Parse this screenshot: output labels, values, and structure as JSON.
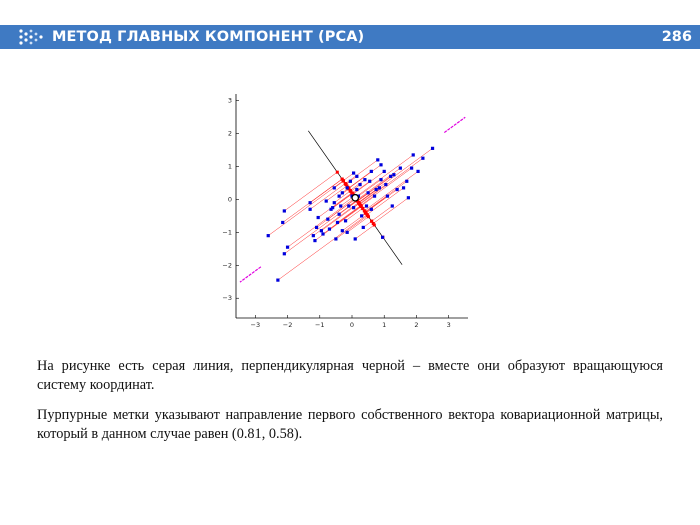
{
  "header": {
    "title": "МЕТОД ГЛАВНЫХ КОМПОНЕНТ (PCA)",
    "page_number": "286",
    "colors": {
      "bar": "#3f7ac3",
      "text": "#ffffff"
    }
  },
  "figure": {
    "x_ticks": [
      "−3",
      "−2",
      "−1",
      "0",
      "1",
      "2",
      "3"
    ],
    "y_ticks": [
      "3",
      "2",
      "1",
      "0",
      "−1",
      "−2",
      "−3"
    ]
  },
  "chart_data": {
    "type": "scatter",
    "title": "",
    "xlabel": "",
    "ylabel": "",
    "xlim": [
      -3.6,
      3.6
    ],
    "ylim": [
      -3.6,
      3.2
    ],
    "grid": false,
    "eigenvector": [
      0.81,
      0.58
    ],
    "center": [
      0.1,
      0.05
    ],
    "colors": {
      "points": "#0000dd",
      "projections": "#ff0000",
      "magenta": "#e000e0",
      "black_axis": "#000000",
      "gray_axis": "#999999"
    },
    "points": [
      [
        -2.6,
        -1.1
      ],
      [
        -2.3,
        -2.45
      ],
      [
        -2.1,
        -1.65
      ],
      [
        -2.0,
        -1.45
      ],
      [
        -2.1,
        -0.35
      ],
      [
        -2.15,
        -0.7
      ],
      [
        -1.3,
        -0.1
      ],
      [
        -1.3,
        -0.3
      ],
      [
        -1.1,
        -0.85
      ],
      [
        -1.05,
        -0.55
      ],
      [
        -0.95,
        -0.95
      ],
      [
        -0.9,
        -1.05
      ],
      [
        -1.2,
        -1.1
      ],
      [
        -1.15,
        -1.25
      ],
      [
        -0.75,
        -0.6
      ],
      [
        -0.7,
        -0.9
      ],
      [
        -0.65,
        -0.3
      ],
      [
        -0.6,
        -0.25
      ],
      [
        -0.55,
        -0.1
      ],
      [
        -0.5,
        -1.2
      ],
      [
        -0.45,
        -0.7
      ],
      [
        -0.4,
        0.1
      ],
      [
        -0.4,
        -0.45
      ],
      [
        -0.35,
        -0.2
      ],
      [
        -0.3,
        0.2
      ],
      [
        -0.3,
        -0.95
      ],
      [
        -0.2,
        -0.65
      ],
      [
        -0.15,
        -1.0
      ],
      [
        -0.15,
        0.35
      ],
      [
        -0.1,
        -0.2
      ],
      [
        -0.05,
        0.55
      ],
      [
        0.0,
        0.1
      ],
      [
        0.05,
        -0.25
      ],
      [
        0.05,
        0.8
      ],
      [
        0.1,
        -1.2
      ],
      [
        0.15,
        0.7
      ],
      [
        0.15,
        0.3
      ],
      [
        0.2,
        0.1
      ],
      [
        0.25,
        0.45
      ],
      [
        0.3,
        -0.5
      ],
      [
        0.35,
        -0.85
      ],
      [
        0.4,
        0.6
      ],
      [
        0.45,
        -0.2
      ],
      [
        0.5,
        0.2
      ],
      [
        0.55,
        0.55
      ],
      [
        0.6,
        -0.3
      ],
      [
        0.7,
        0.1
      ],
      [
        0.75,
        0.3
      ],
      [
        0.8,
        1.2
      ],
      [
        0.85,
        0.35
      ],
      [
        0.9,
        0.6
      ],
      [
        0.95,
        -1.15
      ],
      [
        1.0,
        0.85
      ],
      [
        1.05,
        0.45
      ],
      [
        1.1,
        0.1
      ],
      [
        1.2,
        0.7
      ],
      [
        1.25,
        -0.2
      ],
      [
        1.3,
        0.75
      ],
      [
        1.4,
        0.3
      ],
      [
        1.5,
        0.95
      ],
      [
        1.6,
        0.35
      ],
      [
        1.7,
        0.55
      ],
      [
        1.75,
        0.05
      ],
      [
        1.85,
        0.95
      ],
      [
        1.9,
        1.35
      ],
      [
        2.05,
        0.85
      ],
      [
        2.2,
        1.25
      ],
      [
        2.5,
        1.55
      ],
      [
        -0.8,
        -0.05
      ],
      [
        0.6,
        0.85
      ],
      [
        0.9,
        1.05
      ],
      [
        -0.55,
        0.35
      ]
    ]
  },
  "paragraphs": [
    "На рисунке есть серая линия, перпендикулярная черной – вместе они образуют вращающуюся систему координат.",
    "Пурпурные метки указывают направление первого собственного вектора ковариационной матрицы, который в данном случае равен (0.81, 0.58)."
  ]
}
